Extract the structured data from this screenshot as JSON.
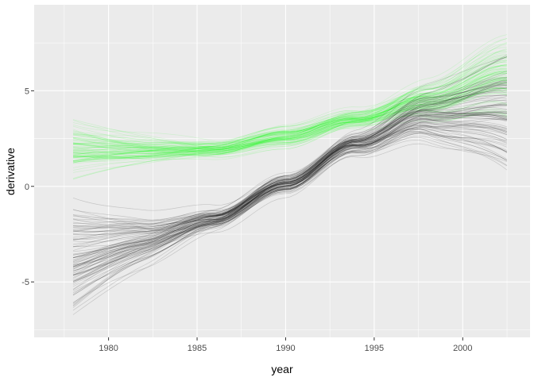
{
  "chart_data": {
    "type": "line",
    "title": "",
    "xlabel": "year",
    "ylabel": "derivative",
    "xlim": [
      1975.8,
      2003.8
    ],
    "ylim": [
      -7.9,
      9.5
    ],
    "x_ticks": [
      1980,
      1985,
      1990,
      1995,
      2000
    ],
    "y_ticks": [
      -5,
      0,
      5
    ],
    "x_tick_labels": [
      "1980",
      "1985",
      "1990",
      "1995",
      "2000"
    ],
    "y_tick_labels": [
      "-5",
      "0",
      "5"
    ],
    "grid": true,
    "legend": "none",
    "x_range_data": [
      1978,
      2002.5
    ],
    "series_groups": [
      {
        "color": "#00ff00",
        "line_opacity": 0.12,
        "line_count": 100,
        "knot_x": [
          1978,
          1982,
          1986,
          1990,
          1994,
          1998,
          2002.5
        ],
        "knot_y": [
          1.9,
          1.9,
          1.95,
          2.6,
          3.6,
          4.8,
          6.5
        ],
        "start_spread_y": [
          0.2,
          3.5
        ],
        "end_spread_y": [
          3.5,
          8.0
        ]
      },
      {
        "color": "#000000",
        "line_opacity": 0.16,
        "line_count": 100,
        "knot_x": [
          1978,
          1982,
          1986,
          1990,
          1994,
          1998,
          2002.5
        ],
        "knot_y": [
          -2.5,
          -2.3,
          -1.6,
          0.1,
          2.3,
          4.0,
          4.6
        ],
        "start_spread_y": [
          -7.2,
          -0.3
        ],
        "end_spread_y": [
          0.7,
          7.0
        ]
      }
    ],
    "colors": {
      "panel_background": "#ebebeb",
      "grid_major": "#ffffff",
      "tick_mark": "#333333",
      "tick_label": "#4d4d4d",
      "axis_title": "#000000"
    }
  }
}
